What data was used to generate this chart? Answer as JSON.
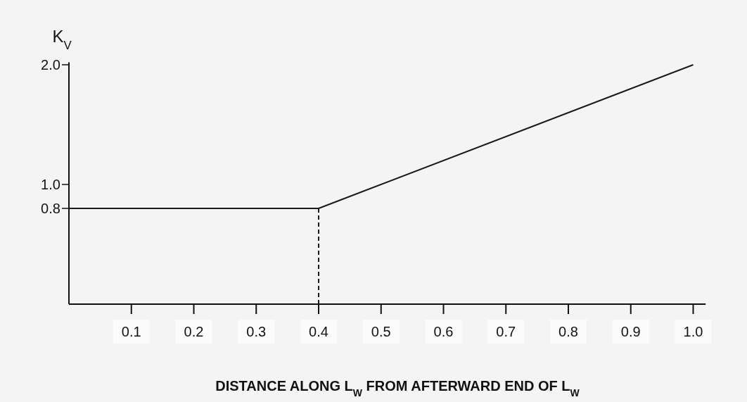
{
  "chart_data": {
    "type": "line",
    "ylabel": "K$_{V}$",
    "xlabel": "DISTANCE ALONG L$_{W}$ FROM AFTERWARD END OF L$_{W}$",
    "xlim": [
      0,
      1.02
    ],
    "ylim": [
      0,
      2.02
    ],
    "xticks": [
      0.1,
      0.2,
      0.3,
      0.4,
      0.5,
      0.6,
      0.7,
      0.8,
      0.9,
      {
        "value": 1,
        "label": "1.0"
      }
    ],
    "yticks": [
      0.8,
      {
        "value": 1,
        "label": "1.0"
      },
      {
        "value": 2,
        "label": "2.0"
      }
    ],
    "series": [
      {
        "color": "#1a1a1a",
        "x": [
          0,
          0.4,
          1.0
        ],
        "values": [
          0.8,
          0.8,
          2.0
        ],
        "line_style": "solid"
      },
      {
        "color": "#1a1a1a",
        "x": [
          0.4,
          0.4
        ],
        "values": [
          0,
          0.8
        ],
        "line_style": "dashed"
      }
    ]
  }
}
